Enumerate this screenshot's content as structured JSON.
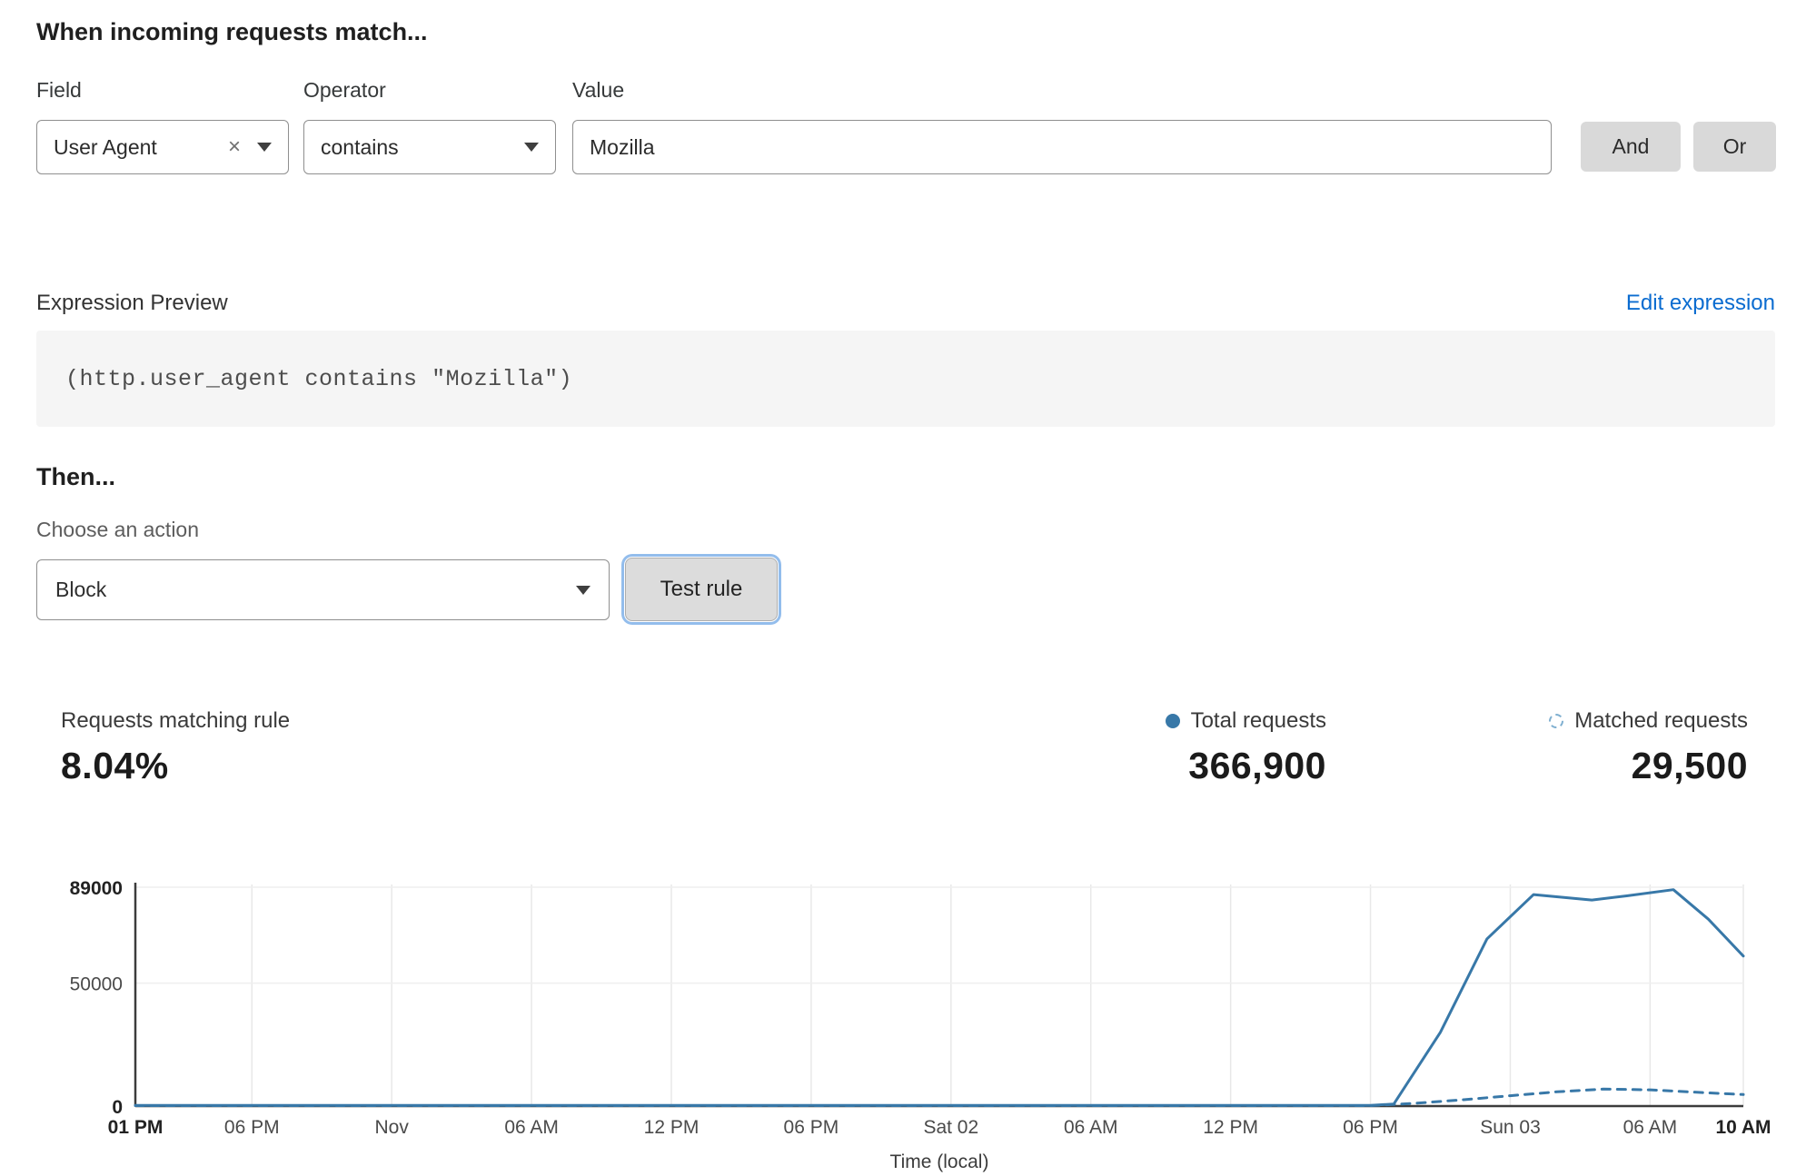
{
  "header": {
    "title": "When incoming requests match..."
  },
  "rule_builder": {
    "field_label": "Field",
    "operator_label": "Operator",
    "value_label": "Value",
    "field_value": "User Agent",
    "operator_value": "contains",
    "value_value": "Mozilla",
    "and_button": "And",
    "or_button": "Or"
  },
  "expression": {
    "preview_label": "Expression Preview",
    "edit_link": "Edit expression",
    "code": "(http.user_agent contains \"Mozilla\")"
  },
  "action": {
    "then_title": "Then...",
    "choose_label": "Choose an action",
    "selected_action": "Block",
    "test_button": "Test rule"
  },
  "stats": {
    "matching": {
      "label": "Requests matching rule",
      "value": "8.04%"
    },
    "total": {
      "label": "Total requests",
      "value": "366,900"
    },
    "matched": {
      "label": "Matched requests",
      "value": "29,500"
    }
  },
  "colors": {
    "link_blue": "#0b6cd0",
    "chart_line": "#3878a8",
    "legend_dashed": "#7fafd0",
    "grid": "#e8e8e8",
    "axis": "#3c3c3c"
  },
  "chart_data": {
    "type": "line",
    "title": "",
    "xlabel": "Time (local)",
    "ylabel": "",
    "ylim": [
      0,
      89000
    ],
    "x_unit": "hours since Fri 01 PM; ticks every 6h",
    "legend_position": "top-right (above chart as stats legend)",
    "grid": true,
    "y_ticks": [
      {
        "label": "89000",
        "value": 89000,
        "bold": true
      },
      {
        "label": "50000",
        "value": 50000,
        "bold": false
      },
      {
        "label": "0",
        "value": 0,
        "bold": true
      }
    ],
    "x_ticks": [
      {
        "label": "01 PM",
        "hour": 0,
        "bold": true
      },
      {
        "label": "06 PM",
        "hour": 5,
        "bold": false
      },
      {
        "label": "Nov",
        "hour": 11,
        "bold": false
      },
      {
        "label": "06 AM",
        "hour": 17,
        "bold": false
      },
      {
        "label": "12 PM",
        "hour": 23,
        "bold": false
      },
      {
        "label": "06 PM",
        "hour": 29,
        "bold": false
      },
      {
        "label": "Sat 02",
        "hour": 35,
        "bold": false
      },
      {
        "label": "06 AM",
        "hour": 41,
        "bold": false
      },
      {
        "label": "12 PM",
        "hour": 47,
        "bold": false
      },
      {
        "label": "06 PM",
        "hour": 53,
        "bold": false
      },
      {
        "label": "Sun 03",
        "hour": 59,
        "bold": false
      },
      {
        "label": "06 AM",
        "hour": 65,
        "bold": false
      },
      {
        "label": "10 AM",
        "hour": 69,
        "bold": true
      }
    ],
    "series": [
      {
        "name": "Total requests",
        "style": "solid",
        "points": [
          [
            0,
            300
          ],
          [
            10,
            300
          ],
          [
            20,
            300
          ],
          [
            30,
            300
          ],
          [
            40,
            300
          ],
          [
            50,
            300
          ],
          [
            53,
            300
          ],
          [
            54,
            800
          ],
          [
            56,
            30000
          ],
          [
            58,
            68000
          ],
          [
            60,
            86000
          ],
          [
            62.5,
            83800
          ],
          [
            64,
            85500
          ],
          [
            66,
            88000
          ],
          [
            67.5,
            76000
          ],
          [
            69,
            61000
          ]
        ]
      },
      {
        "name": "Matched requests",
        "style": "dashed",
        "points": [
          [
            0,
            200
          ],
          [
            10,
            200
          ],
          [
            20,
            200
          ],
          [
            30,
            200
          ],
          [
            40,
            200
          ],
          [
            50,
            200
          ],
          [
            53,
            200
          ],
          [
            55,
            1200
          ],
          [
            57,
            2600
          ],
          [
            59,
            4200
          ],
          [
            61,
            5800
          ],
          [
            63,
            6900
          ],
          [
            65,
            6600
          ],
          [
            67,
            5600
          ],
          [
            69,
            4700
          ]
        ]
      }
    ]
  }
}
